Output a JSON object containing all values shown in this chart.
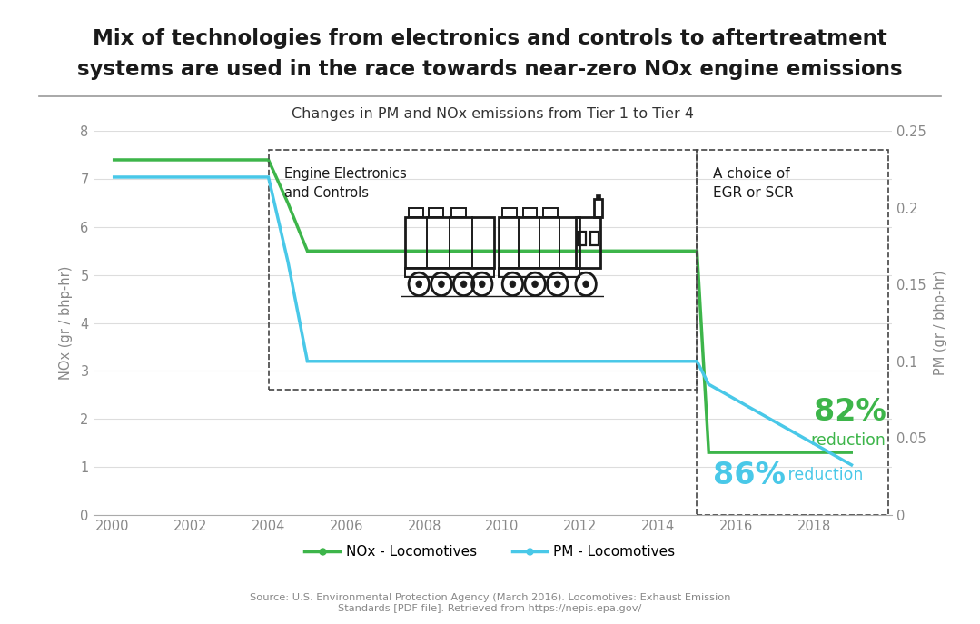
{
  "title_line1": "Mix of technologies from electronics and controls to aftertreatment",
  "title_line2": "systems are used in the race towards near-zero NOx engine emissions",
  "subtitle": "Changes in PM and NOx emissions from Tier 1 to Tier 4",
  "source": "Source: U.S. Environmental Protection Agency (March 2016). Locomotives: Exhaust Emission\nStandards [PDF file]. Retrieved from https://nepis.epa.gov/",
  "nox_x": [
    2000,
    2004,
    2004.5,
    2005,
    2015,
    2015.3,
    2019
  ],
  "nox_y": [
    7.4,
    7.4,
    6.5,
    5.5,
    5.5,
    1.3,
    1.3
  ],
  "pm_x": [
    2000,
    2004,
    2004.5,
    2005,
    2015,
    2015.3,
    2019
  ],
  "pm_y": [
    0.22,
    0.22,
    0.165,
    0.1,
    0.1,
    0.085,
    0.032
  ],
  "nox_color": "#3DB54A",
  "pm_color": "#49C8E8",
  "nox_label": "NOx - Locomotives",
  "pm_label": "PM - Locomotives",
  "ylabel_left": "NOx (gr / bhp-hr)",
  "ylabel_right": "PM (gr / bhp-hr)",
  "xlim": [
    1999.5,
    2020
  ],
  "ylim_left": [
    0,
    8
  ],
  "ylim_right": [
    0,
    0.25
  ],
  "xticks": [
    2000,
    2002,
    2004,
    2006,
    2008,
    2010,
    2012,
    2014,
    2016,
    2018
  ],
  "yticks_left": [
    0,
    1,
    2,
    3,
    4,
    5,
    6,
    7,
    8
  ],
  "yticks_right": [
    0,
    0.05,
    0.1,
    0.15,
    0.2,
    0.25
  ],
  "background_color": "#ffffff",
  "grid_color": "#dddddd",
  "tick_color": "#888888",
  "annotation_box1_text": "Engine Electronics\nand Controls",
  "annotation_box2_text": "A choice of\nEGR or SCR",
  "annotation_82_pct": "82%",
  "annotation_82_sub": "reduction",
  "annotation_86_pct": "86%",
  "annotation_86_sub": " reduction",
  "rect1_x0": 2004,
  "rect1_x1": 2015,
  "rect1_y0": 2.6,
  "rect1_y1": 7.6,
  "rect2_x0": 2015,
  "rect2_x1": 2019.9,
  "rect2_y0": 0.0,
  "rect2_y1": 7.6
}
